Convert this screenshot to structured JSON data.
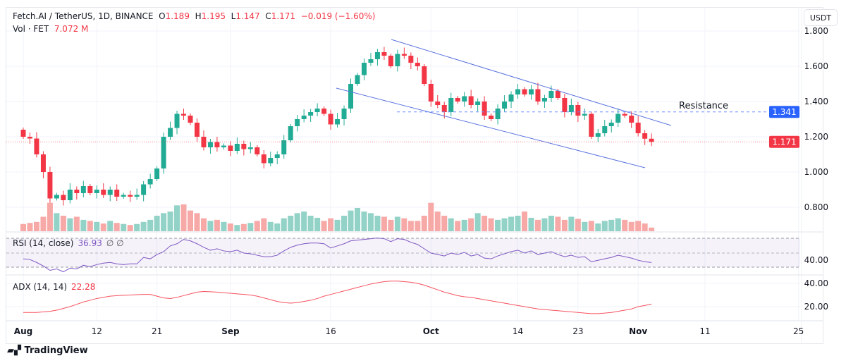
{
  "header": {
    "symbol": "Fetch.AI / TetherUS, 1D, BINANCE",
    "o_label": "O",
    "o": "1.189",
    "h_label": "H",
    "h": "1.195",
    "l_label": "L",
    "l": "1.147",
    "c_label": "C",
    "c": "1.171",
    "change": "−0.019 (−1.60%)",
    "vol_label": "Vol · FET",
    "vol_value": "7.072 M"
  },
  "currency_button": "USDT",
  "brand": "TradingView",
  "annotation": {
    "resistance_label": "Resistance",
    "resistance_value": "1.341",
    "last_price": "1.171"
  },
  "colors": {
    "up": "#22ab94",
    "down": "#f23645",
    "up_vol": "#92d2c7",
    "down_vol": "#f7a9a7",
    "rsi": "#7e57c2",
    "adx": "#f7525f",
    "resistance": "#2962ff",
    "channel": "#5b74e0"
  },
  "chart_data": [
    {
      "type": "candlestick",
      "title": "Fetch.AI / TetherUS, 1D, BINANCE",
      "yticks": [
        "0.800",
        "1.000",
        "1.200",
        "1.400",
        "1.600",
        "1.800"
      ],
      "ylim": [
        0.67,
        1.82
      ],
      "xticks": [
        "Aug",
        "12",
        "21",
        "Sep",
        "16",
        "Oct",
        "14",
        "23",
        "Nov",
        "11",
        "25"
      ],
      "grid": true,
      "close": [
        1.2,
        1.19,
        1.1,
        1.0,
        0.85,
        0.87,
        0.84,
        0.9,
        0.88,
        0.92,
        0.88,
        0.9,
        0.87,
        0.9,
        0.86,
        0.87,
        0.86,
        0.87,
        0.93,
        0.96,
        1.02,
        1.2,
        1.25,
        1.33,
        1.32,
        1.28,
        1.2,
        1.14,
        1.17,
        1.14,
        1.15,
        1.12,
        1.16,
        1.13,
        1.14,
        1.1,
        1.05,
        1.08,
        1.1,
        1.18,
        1.26,
        1.3,
        1.32,
        1.34,
        1.36,
        1.33,
        1.27,
        1.3,
        1.36,
        1.5,
        1.55,
        1.62,
        1.64,
        1.68,
        1.66,
        1.6,
        1.67,
        1.66,
        1.62,
        1.6,
        1.5,
        1.4,
        1.38,
        1.34,
        1.42,
        1.4,
        1.43,
        1.38,
        1.4,
        1.32,
        1.3,
        1.36,
        1.4,
        1.44,
        1.47,
        1.44,
        1.47,
        1.4,
        1.42,
        1.46,
        1.42,
        1.34,
        1.38,
        1.32,
        1.33,
        1.2,
        1.22,
        1.26,
        1.28,
        1.33,
        1.32,
        1.28,
        1.22,
        1.189,
        1.171
      ],
      "first_open": 1.24,
      "volume_unit": "M",
      "volume": [
        14,
        16,
        18,
        28,
        55,
        35,
        30,
        25,
        28,
        22,
        20,
        18,
        15,
        20,
        16,
        14,
        12,
        14,
        18,
        22,
        30,
        35,
        38,
        50,
        52,
        40,
        35,
        25,
        20,
        22,
        18,
        15,
        12,
        14,
        16,
        20,
        25,
        18,
        15,
        25,
        30,
        35,
        38,
        30,
        26,
        20,
        25,
        22,
        30,
        40,
        45,
        38,
        35,
        30,
        28,
        22,
        28,
        25,
        20,
        20,
        30,
        55,
        38,
        30,
        25,
        20,
        22,
        25,
        35,
        30,
        25,
        22,
        25,
        28,
        30,
        38,
        26,
        22,
        25,
        30,
        28,
        22,
        28,
        24,
        18,
        20,
        15,
        20,
        22,
        25,
        22,
        18,
        20,
        15,
        7.072
      ],
      "resistance": 1.341,
      "last_price": 1.171
    },
    {
      "type": "line",
      "title": "RSI (14, close)",
      "last_value": "36.93",
      "extra": "∅ ∅",
      "bands": [
        30,
        50,
        70
      ],
      "yticks": [
        "40.00"
      ],
      "values": [
        42,
        41,
        37,
        32,
        26,
        28,
        24,
        29,
        28,
        33,
        31,
        34,
        36,
        37,
        35,
        34,
        35,
        35,
        44,
        42,
        48,
        52,
        60,
        63,
        69,
        67,
        63,
        58,
        54,
        56,
        53,
        52,
        54,
        50,
        49,
        47,
        45,
        45,
        47,
        53,
        58,
        61,
        63,
        64,
        64,
        63,
        57,
        60,
        63,
        67,
        68,
        69,
        70,
        71,
        70,
        66,
        70,
        69,
        65,
        62,
        56,
        50,
        48,
        46,
        50,
        48,
        51,
        46,
        48,
        43,
        42,
        46,
        49,
        52,
        54,
        50,
        53,
        48,
        50,
        52,
        48,
        45,
        47,
        44,
        45,
        38,
        40,
        42,
        44,
        47,
        45,
        43,
        40,
        38,
        36.93
      ]
    },
    {
      "type": "line",
      "title": "ADX (14, 14)",
      "last_value": "22.28",
      "yticks": [
        "20.00",
        "40.00"
      ],
      "values": [
        15,
        15,
        15,
        15.5,
        16,
        17,
        18.5,
        20,
        22,
        24,
        25.5,
        27,
        28,
        29,
        29.5,
        29.8,
        30,
        30.3,
        30.5,
        30.5,
        29,
        27.5,
        27,
        28,
        29.5,
        31,
        32.5,
        33,
        32.8,
        32.5,
        32,
        31.5,
        31,
        30.5,
        30,
        29,
        27.5,
        26,
        24.5,
        23.5,
        23,
        23.5,
        24.5,
        25.5,
        27,
        29,
        30.5,
        32,
        33.5,
        35,
        36.5,
        38,
        39.5,
        40.5,
        41.5,
        42,
        42,
        41.5,
        41,
        40,
        38.5,
        36.5,
        34.5,
        32.5,
        31,
        29.5,
        28.5,
        28,
        27,
        26,
        25,
        24,
        23,
        22,
        21,
        20,
        19,
        18,
        17.5,
        17,
        16.5,
        16,
        15.5,
        15,
        14.5,
        14,
        14,
        14.5,
        15,
        16,
        17,
        18,
        20,
        21,
        22.28
      ]
    }
  ]
}
